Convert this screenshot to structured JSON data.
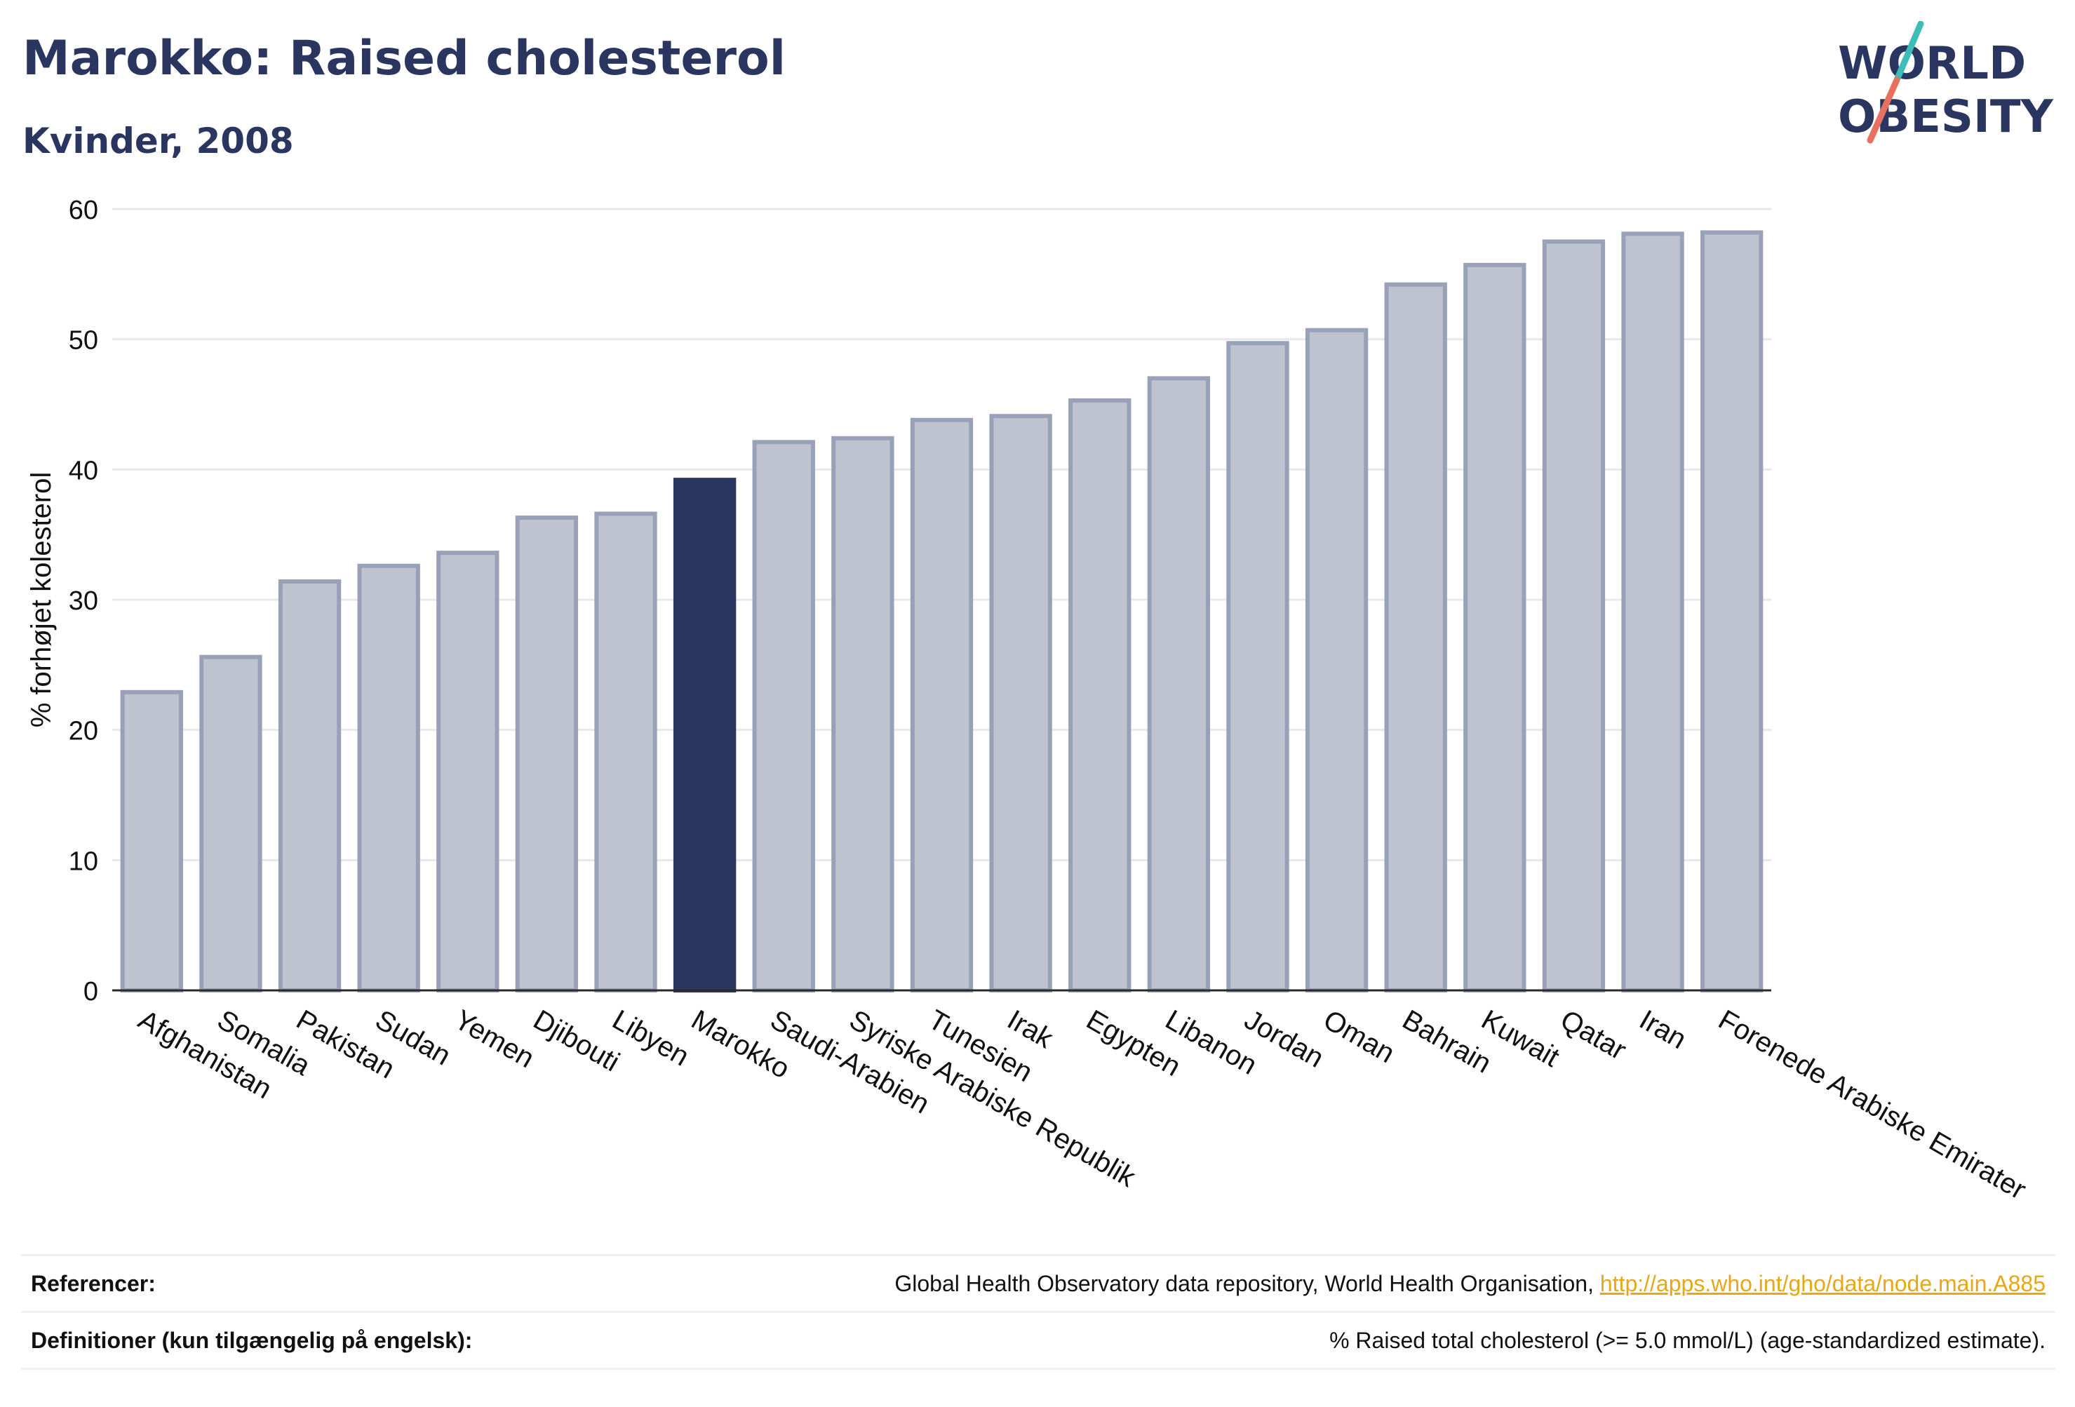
{
  "title": "Marokko: Raised cholesterol",
  "subtitle": "Kvinder, 2008",
  "logo": {
    "line1": "WORLD",
    "line2": "OBESITY"
  },
  "colors": {
    "highlight": "#2b3660",
    "bar_fill": "#bfc3d0",
    "bar_stroke": "#99a1b8",
    "grid": "#e6e8ee",
    "axis": "#2a2a2a",
    "logo_teal": "#3ebcb6",
    "logo_coral": "#e8705e",
    "link": "#e6a817"
  },
  "chart_data": {
    "type": "bar",
    "ylabel": "% forhøjet kolesterol",
    "ylim": [
      0,
      60
    ],
    "yticks": [
      0,
      10,
      20,
      30,
      40,
      50,
      60
    ],
    "grid": true,
    "highlight": "Marokko",
    "categories": [
      "Afghanistan",
      "Somalia",
      "Pakistan",
      "Sudan",
      "Yemen",
      "Djibouti",
      "Libyen",
      "Marokko",
      "Saudi-Arabien",
      "Syriske Arabiske Republik",
      "Tunesien",
      "Irak",
      "Egypten",
      "Libanon",
      "Jordan",
      "Oman",
      "Bahrain",
      "Kuwait",
      "Qatar",
      "Iran",
      "Forenede Arabiske Emirater"
    ],
    "values": [
      22.9,
      25.6,
      31.4,
      32.6,
      33.6,
      36.3,
      36.6,
      39.2,
      42.1,
      42.4,
      43.8,
      44.1,
      45.3,
      47.0,
      49.7,
      50.7,
      54.2,
      55.7,
      57.5,
      58.1,
      58.2
    ]
  },
  "footer": {
    "references_label": "Referencer:",
    "references_text": "Global Health Observatory data repository, World Health Organisation,",
    "references_link": "http://apps.who.int/gho/data/node.main.A885",
    "definitions_label": "Definitioner (kun tilgængelig på engelsk):",
    "definitions_text": "% Raised total cholesterol (>= 5.0 mmol/L) (age-standardized estimate)."
  }
}
